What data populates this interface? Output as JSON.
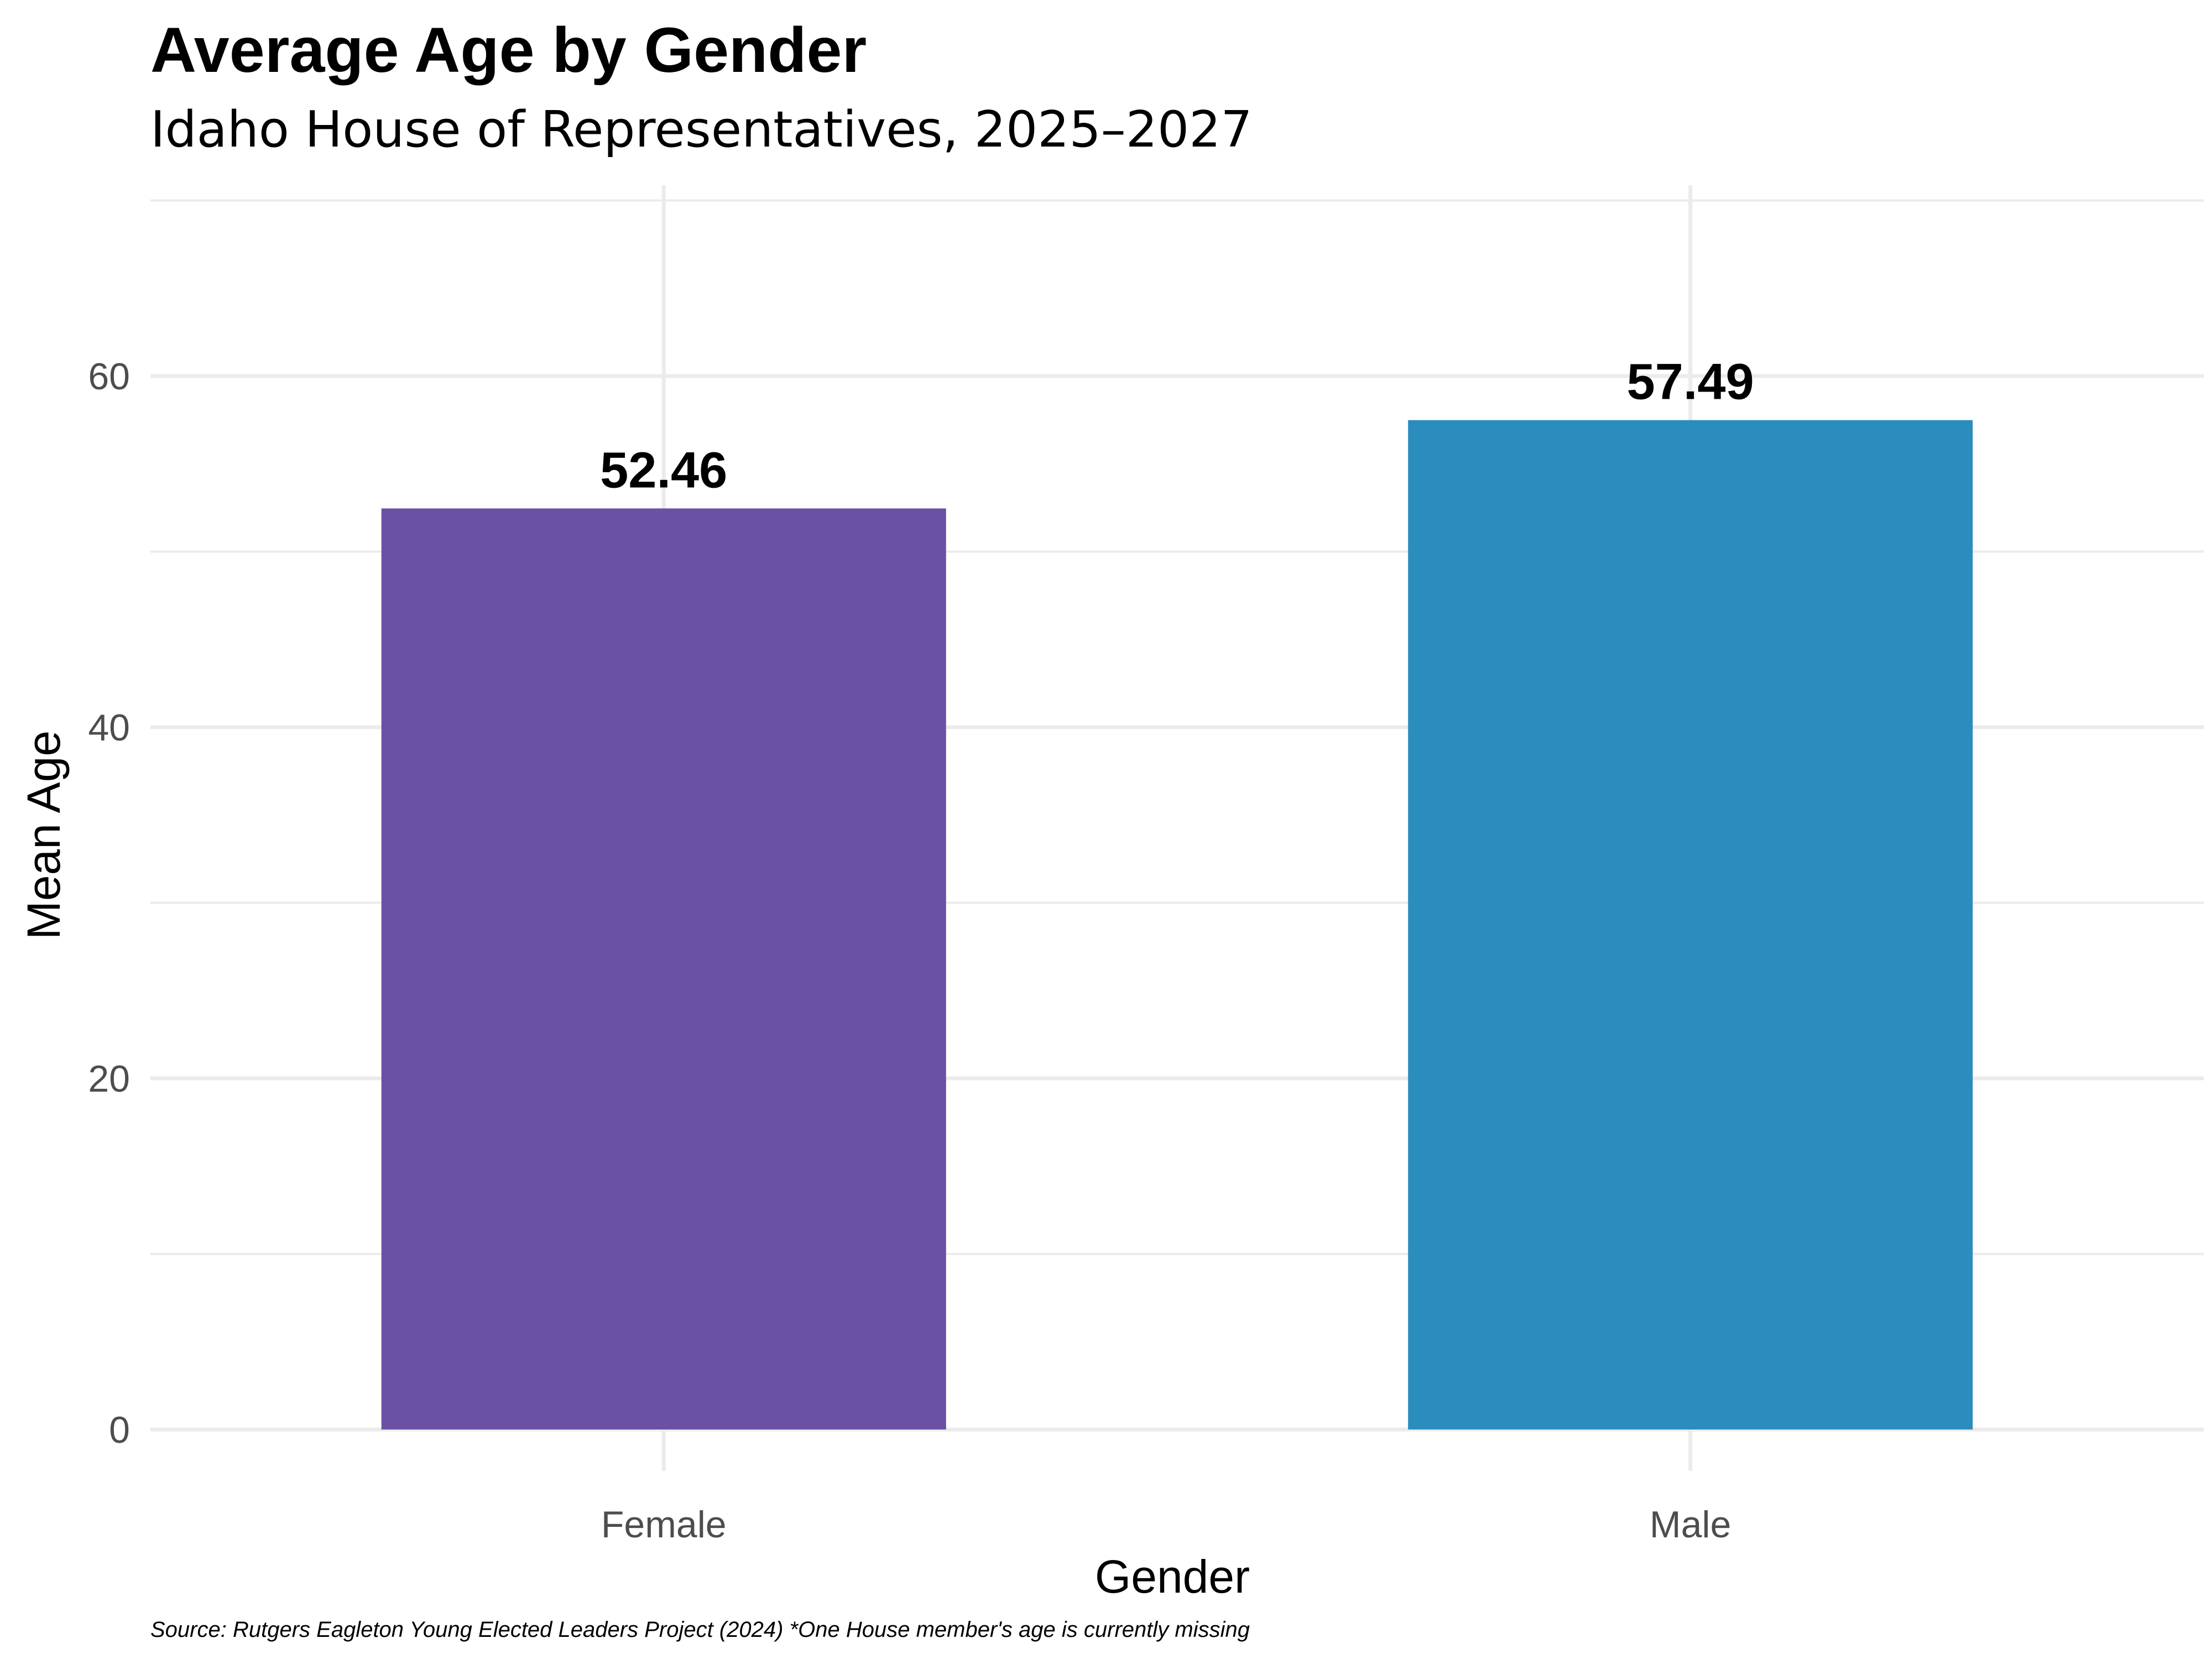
{
  "chart_data": {
    "type": "bar",
    "title": "Average Age by Gender",
    "subtitle": "Idaho House of Representatives, 2025–2027",
    "xlabel": "Gender",
    "ylabel": "Mean Age",
    "categories": [
      "Female",
      "Male"
    ],
    "values": [
      52.46,
      57.49
    ],
    "value_labels": [
      "52.46",
      "57.49"
    ],
    "colors": [
      "#6a51a3",
      "#2b8cbe"
    ],
    "ylim": [
      0,
      70
    ],
    "y_ticks": [
      0,
      20,
      40,
      60
    ],
    "y_tick_labels": [
      "0",
      "20",
      "40",
      "60"
    ],
    "grid": true,
    "legend": "none",
    "caption": "Source: Rutgers Eagleton Young Elected Leaders Project (2024) *One House member's age is currently missing"
  }
}
